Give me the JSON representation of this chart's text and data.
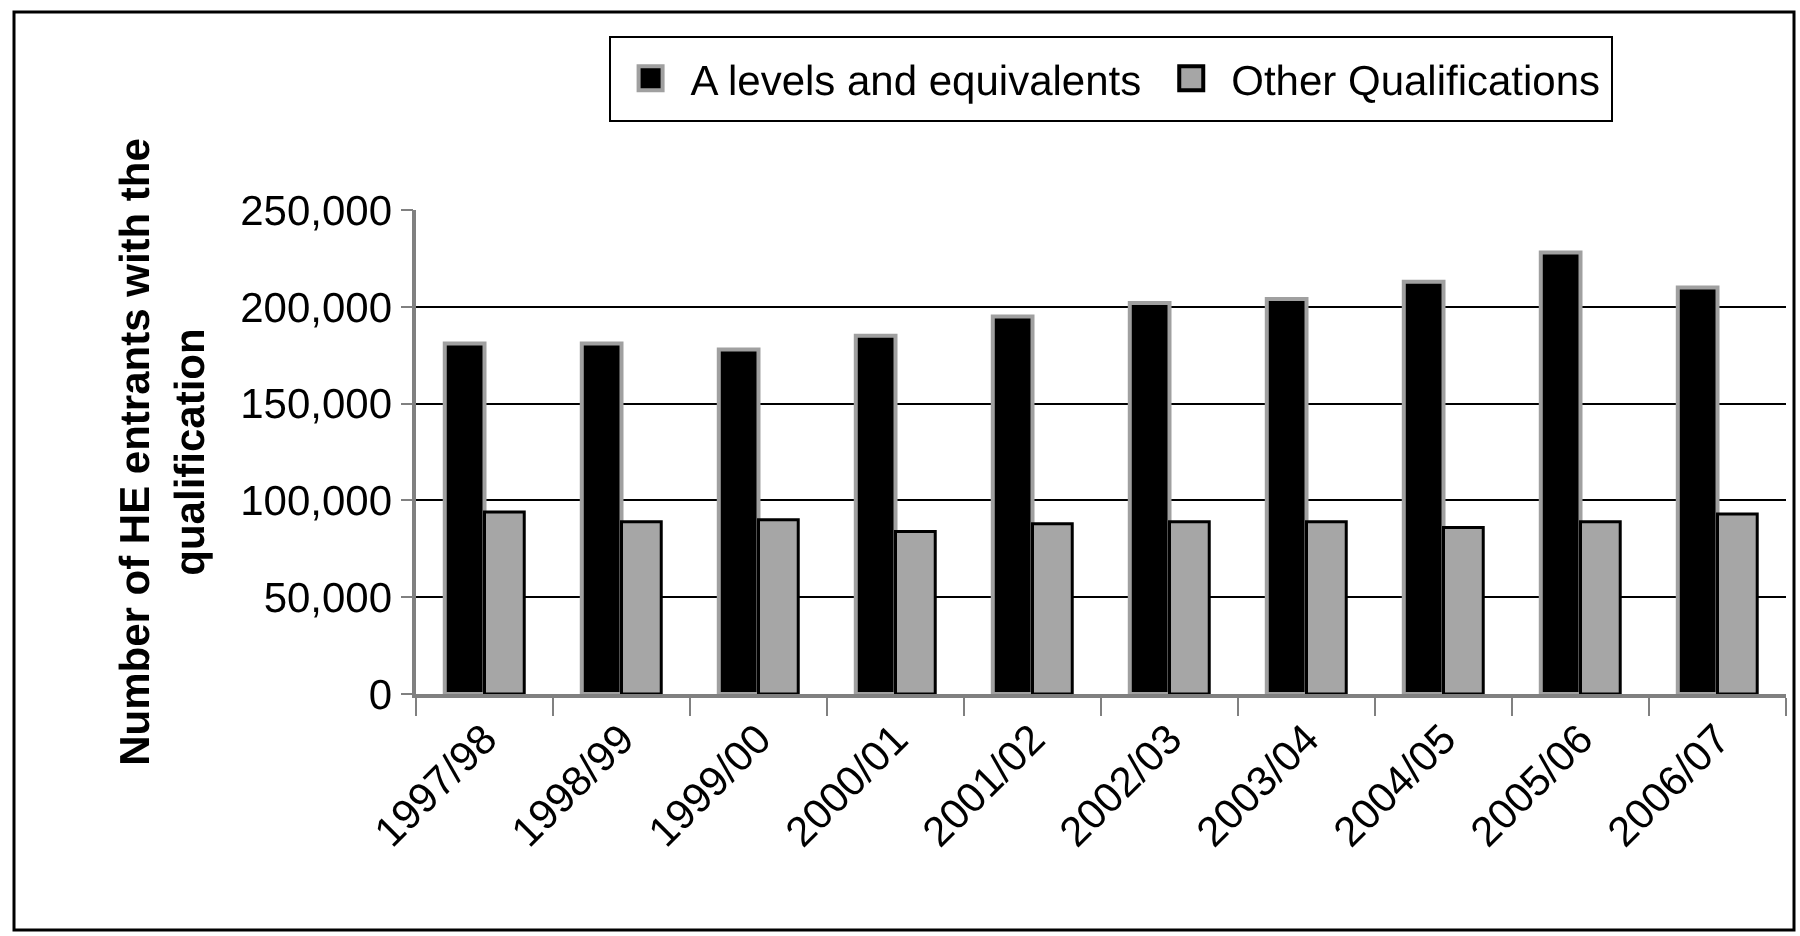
{
  "chart_data": {
    "type": "bar",
    "ylabel": "Number of HE entrants with the\nqualification",
    "categories": [
      "1997/98",
      "1998/99",
      "1999/00",
      "2000/01",
      "2001/02",
      "2002/03",
      "2003/04",
      "2004/05",
      "2005/06",
      "2006/07"
    ],
    "series": [
      {
        "name": "A levels and equivalents",
        "color": "#000000",
        "values": [
          181000,
          181000,
          178000,
          185000,
          195000,
          202000,
          204000,
          213000,
          228000,
          210000
        ]
      },
      {
        "name": "Other Qualifications",
        "color": "#a6a6a6",
        "values": [
          94000,
          89000,
          90000,
          84000,
          88000,
          89000,
          89000,
          86000,
          89000,
          93000
        ]
      }
    ],
    "ylim": [
      0,
      250000
    ],
    "yticks": [
      0,
      {
        "value": 50000,
        "label": "50,000"
      },
      {
        "value": 100000,
        "label": "100,000"
      },
      {
        "value": 150000,
        "label": "150,000"
      },
      {
        "value": 200000,
        "label": "200,000"
      },
      {
        "value": 250000,
        "label": "250,000"
      }
    ],
    "grid": "y",
    "legend": "top"
  }
}
